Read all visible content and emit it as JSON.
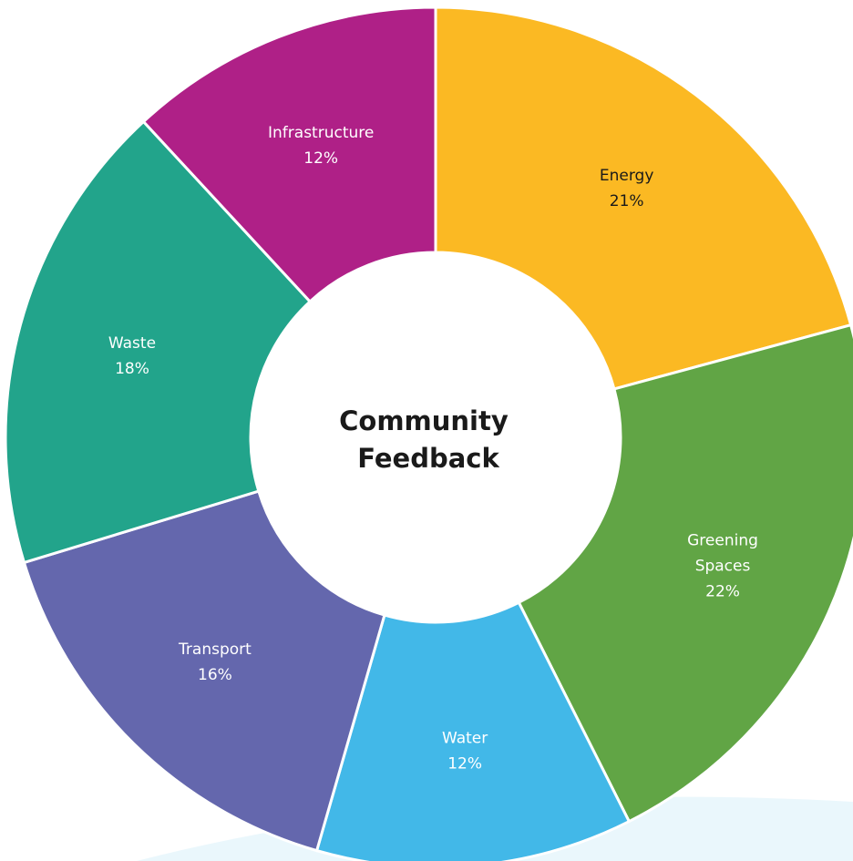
{
  "chart_data": {
    "type": "pie",
    "variant": "donut",
    "title": "",
    "center_label": [
      "Community",
      "Feedback"
    ],
    "slices": [
      {
        "name": "Energy",
        "value": 21,
        "label_lines": [
          "Energy",
          "21%"
        ],
        "color": "#FBB923",
        "text_color": "#1a1a1a"
      },
      {
        "name": "Greening Spaces",
        "value": 22,
        "label_lines": [
          "Greening",
          "Spaces",
          "22%"
        ],
        "color": "#61A545",
        "text_color": "#ffffff"
      },
      {
        "name": "Water",
        "value": 12,
        "label_lines": [
          "Water",
          "12%"
        ],
        "color": "#42B8E8",
        "text_color": "#ffffff"
      },
      {
        "name": "Transport",
        "value": 16,
        "label_lines": [
          "Transport",
          "16%"
        ],
        "color": "#6467AD",
        "text_color": "#ffffff"
      },
      {
        "name": "Waste",
        "value": 18,
        "label_lines": [
          "Waste",
          "18%"
        ],
        "color": "#22A48B",
        "text_color": "#ffffff"
      },
      {
        "name": "Infrastructure",
        "value": 12,
        "label_lines": [
          "Infrastructure",
          "12%"
        ],
        "color": "#AF2087",
        "text_color": "#ffffff"
      }
    ],
    "start": "12 o'clock",
    "direction": "clockwise",
    "legend": "none"
  }
}
